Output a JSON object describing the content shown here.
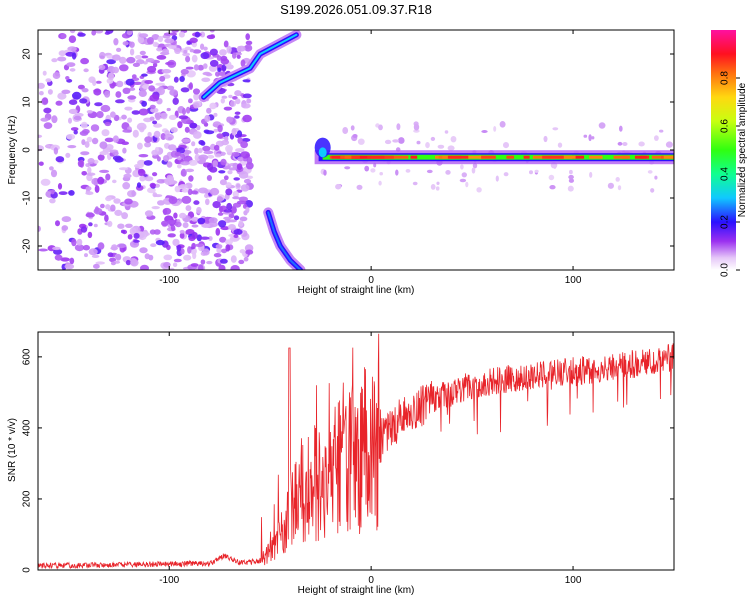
{
  "title": "S199.2026.051.09.37.R18",
  "top_panel": {
    "xlabel": "Height of straight line (km)",
    "ylabel": "Frequency (Hz)",
    "colorbar_label": "Normalized spectral amplitude"
  },
  "bottom_panel": {
    "xlabel": "Height of straight line (km)",
    "ylabel": "SNR (10 * v/v)"
  },
  "colors": {
    "snr_line": "#e8242a",
    "background": "#ffffff"
  },
  "chart_data": [
    {
      "type": "heatmap",
      "title": "S199.2026.051.09.37.R18",
      "xlabel": "Height of straight line (km)",
      "ylabel": "Frequency (Hz)",
      "xlim": [
        -165,
        150
      ],
      "ylim": [
        -25,
        25
      ],
      "x_ticks": [
        -100,
        0,
        100
      ],
      "y_ticks": [
        -20,
        -10,
        0,
        10,
        20
      ],
      "colorbar": {
        "label": "Normalized spectral amplitude",
        "range": [
          0,
          1
        ],
        "ticks": [
          0.0,
          0.2,
          0.4,
          0.6,
          0.8
        ],
        "tick_labels": [
          "0.0",
          "0.2",
          "0.4",
          "0.6",
          "0.8"
        ]
      },
      "features": [
        {
          "name": "noise region",
          "x_range": [
            -165,
            -60
          ],
          "y_range": [
            -25,
            25
          ],
          "amplitude": 0.05
        },
        {
          "name": "steady tone",
          "x_range": [
            -28,
            150
          ],
          "frequency_hz": -1.5,
          "amplitude": 0.9
        },
        {
          "name": "upper chirp",
          "points": [
            [
              -83,
              11
            ],
            [
              -75,
              14
            ],
            [
              -60,
              17
            ],
            [
              -55,
              20
            ],
            [
              -37,
              24
            ]
          ],
          "amplitude": 0.3
        },
        {
          "name": "lower chirp",
          "points": [
            [
              -51,
              -13
            ],
            [
              -48,
              -17
            ],
            [
              -45,
              -20
            ],
            [
              -40,
              -23
            ],
            [
              -35,
              -25
            ]
          ],
          "amplitude": 0.25
        }
      ]
    },
    {
      "type": "line",
      "title": "",
      "xlabel": "Height of straight line (km)",
      "ylabel": "SNR (10 * v/v)",
      "xlim": [
        -165,
        150
      ],
      "ylim": [
        0,
        670
      ],
      "x_ticks": [
        -100,
        0,
        100
      ],
      "y_ticks": [
        0,
        200,
        400,
        600
      ],
      "series": [
        {
          "name": "SNR",
          "x": [
            -165,
            -140,
            -120,
            -100,
            -80,
            -73,
            -65,
            -55,
            -48,
            -44,
            -40,
            -36,
            -32,
            -28,
            -24,
            -20,
            -16,
            -12,
            -8,
            -4,
            0,
            5,
            10,
            15,
            20,
            25,
            30,
            40,
            50,
            60,
            70,
            80,
            90,
            100,
            110,
            120,
            130,
            140,
            150
          ],
          "y": [
            12,
            13,
            15,
            17,
            18,
            40,
            20,
            25,
            60,
            100,
            170,
            230,
            200,
            240,
            230,
            270,
            300,
            330,
            300,
            340,
            340,
            380,
            400,
            430,
            440,
            460,
            480,
            500,
            520,
            530,
            540,
            545,
            555,
            560,
            565,
            570,
            580,
            590,
            600
          ]
        }
      ]
    }
  ]
}
